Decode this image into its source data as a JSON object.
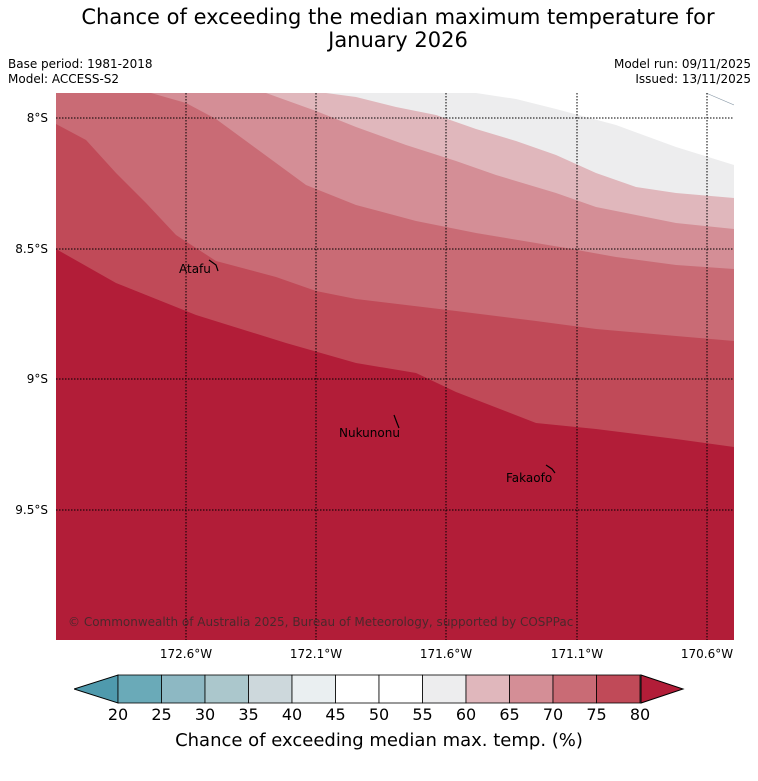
{
  "title_line1": "Chance of exceeding the median maximum temperature for",
  "title_line2": "January 2026",
  "base_period": "Base period: 1981-2018",
  "model": "Model: ACCESS-S2",
  "model_run": "Model run: 09/11/2025",
  "issued": "Issued: 13/11/2025",
  "lat_labels": [
    "8°S",
    "8.5°S",
    "9°S",
    "9.5°S"
  ],
  "lon_labels": [
    "172.6°W",
    "172.1°W",
    "171.6°W",
    "171.1°W",
    "170.6°W"
  ],
  "islands": {
    "atafu": "Atafu",
    "nukunonu": "Nukunonu",
    "fakaofo": "Fakaofo"
  },
  "copyright": "© Commonwealth of Australia 2025, Bureau of Meteorology, supported by COSPPac",
  "colorbar": {
    "ticks": [
      "20",
      "25",
      "30",
      "35",
      "40",
      "45",
      "50",
      "55",
      "60",
      "65",
      "70",
      "75",
      "80"
    ],
    "colors": [
      "#6aaab8",
      "#8db8c3",
      "#abc7cc",
      "#cdd8dc",
      "#eaeff1",
      "#ffffff",
      "#ffffff",
      "#ededee",
      "#e0b7bc",
      "#d48e96",
      "#c96b75",
      "#c04a58"
    ],
    "low_color": "#4f9aad",
    "high_color": "#b21d38",
    "label": "Chance of exceeding median max. temp. (%)"
  },
  "map_data": {
    "band_colors": [
      "#b21d38",
      "#c04a58",
      "#c96b75",
      "#d48e96",
      "#e0b7bc",
      "#ededee",
      "#ffffff"
    ]
  }
}
